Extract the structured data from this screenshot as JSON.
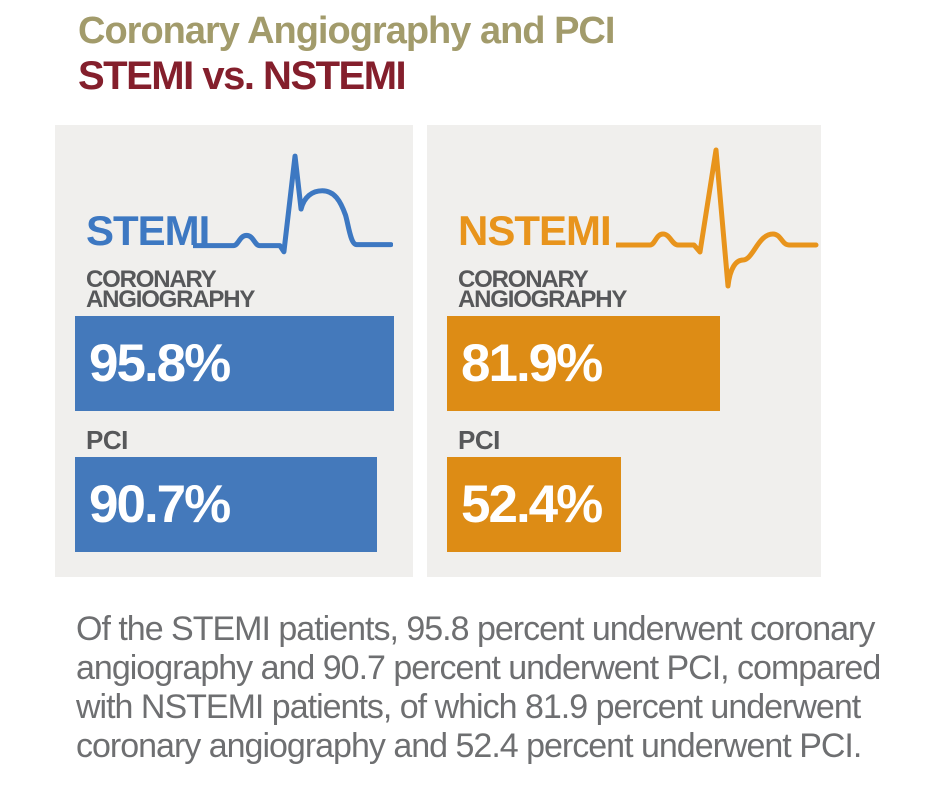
{
  "title": {
    "line1": "Coronary Angiography and PCI",
    "line2": "STEMI vs. NSTEMI"
  },
  "colors": {
    "title_line1": "#a29b6b",
    "title_line2": "#841f2c",
    "panel_bg": "#f0efed",
    "stemi_accent": "#3d78c2",
    "stemi_bar": "#4479bb",
    "nstemi_accent": "#e8941c",
    "nstemi_bar": "#dd8c15",
    "label_gray": "#57585a",
    "caption_gray": "#6e6f71",
    "bar_value_text": "#ffffff"
  },
  "panels": [
    {
      "name": "STEMI",
      "ecg_icon": "stemi-st-elevation-ecg-icon",
      "coronary_label_line1": "CORONARY",
      "coronary_label_line2": "ANGIOGRAPHY",
      "angiography_value": "95.8%",
      "angiography_pct": 95.8,
      "pci_label": "PCI",
      "pci_value": "90.7%",
      "pci_pct": 90.7
    },
    {
      "name": "NSTEMI",
      "ecg_icon": "nstemi-normal-ecg-icon",
      "coronary_label_line1": "CORONARY",
      "coronary_label_line2": "ANGIOGRAPHY",
      "angiography_value": "81.9%",
      "angiography_pct": 81.9,
      "pci_label": "PCI",
      "pci_value": "52.4%",
      "pci_pct": 52.4
    }
  ],
  "caption": {
    "lines": [
      "Of the STEMI patients, 95.8 percent underwent coronary",
      "angiography and 90.7 percent underwent PCI, compared",
      "with NSTEMI patients, of which 81.9 percent underwent",
      "coronary angiography and 52.4 percent underwent PCI."
    ]
  },
  "chart_data": {
    "type": "bar",
    "orientation": "horizontal",
    "title": "Coronary Angiography and PCI — STEMI vs. NSTEMI",
    "categories": [
      "Coronary Angiography",
      "PCI"
    ],
    "series": [
      {
        "name": "STEMI",
        "values": [
          95.8,
          90.7
        ],
        "color": "#4479bb"
      },
      {
        "name": "NSTEMI",
        "values": [
          81.9,
          52.4
        ],
        "color": "#dd8c15"
      }
    ],
    "unit": "percent",
    "xlim": [
      0,
      100
    ],
    "value_labels": {
      "STEMI": [
        "95.8%",
        "90.7%"
      ],
      "NSTEMI": [
        "81.9%",
        "52.4%"
      ]
    },
    "grid": false,
    "legend_position": "panel-headers"
  }
}
